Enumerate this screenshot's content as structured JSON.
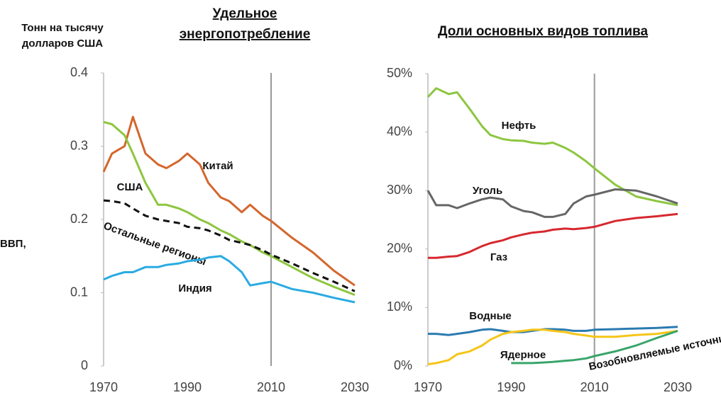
{
  "chart_data": [
    {
      "type": "line",
      "title": [
        "Удельное",
        "энергопотребление"
      ],
      "y_label": [
        "Тонн на тысячу",
        "долларов США"
      ],
      "x": [
        1970,
        1972,
        1975,
        1977,
        1980,
        1983,
        1985,
        1988,
        1990,
        1993,
        1995,
        1998,
        2000,
        2003,
        2005,
        2008,
        2010,
        2015,
        2020,
        2025,
        2030
      ],
      "xlim": [
        1970,
        2030
      ],
      "xticks": [
        1970,
        1990,
        2010,
        2030
      ],
      "ylim": [
        0,
        0.4
      ],
      "yticks": [
        0,
        0.1,
        0.2,
        0.3,
        0.4
      ],
      "vline": 2010,
      "series": [
        {
          "name": "Китай",
          "color": "#d4662c",
          "values": [
            0.265,
            0.29,
            0.3,
            0.34,
            0.29,
            0.275,
            0.27,
            0.28,
            0.29,
            0.275,
            0.25,
            0.23,
            0.225,
            0.21,
            0.22,
            0.205,
            0.198,
            0.175,
            0.155,
            0.13,
            0.11
          ]
        },
        {
          "name": "США",
          "color": "#8dc63f",
          "values": [
            0.333,
            0.33,
            0.315,
            0.29,
            0.25,
            0.22,
            0.22,
            0.215,
            0.21,
            0.2,
            0.195,
            0.185,
            0.18,
            0.17,
            0.165,
            0.155,
            0.15,
            0.135,
            0.12,
            0.108,
            0.097
          ]
        },
        {
          "name": "Остальные регионы",
          "color": "#111111",
          "dashed": true,
          "values": [
            0.226,
            0.225,
            0.222,
            0.215,
            0.205,
            0.2,
            0.198,
            0.195,
            0.19,
            0.188,
            0.185,
            0.178,
            0.172,
            0.168,
            0.165,
            0.158,
            0.152,
            0.14,
            0.127,
            0.115,
            0.102
          ]
        },
        {
          "name": "Индия",
          "color": "#29abe2",
          "values": [
            0.118,
            0.123,
            0.128,
            0.128,
            0.135,
            0.135,
            0.138,
            0.14,
            0.143,
            0.145,
            0.148,
            0.15,
            0.143,
            0.128,
            0.11,
            0.113,
            0.115,
            0.105,
            0.1,
            0.093,
            0.087
          ]
        }
      ]
    },
    {
      "type": "line",
      "title": [
        "Доли основных видов топлива"
      ],
      "x": [
        1970,
        1972,
        1975,
        1977,
        1980,
        1983,
        1985,
        1988,
        1990,
        1993,
        1995,
        1998,
        2000,
        2003,
        2005,
        2008,
        2010,
        2015,
        2020,
        2025,
        2030
      ],
      "xlim": [
        1970,
        2030
      ],
      "xticks": [
        1970,
        1990,
        2010,
        2030
      ],
      "ylim": [
        0,
        50
      ],
      "yticks": [
        {
          "value": 0,
          "label": "0%"
        },
        {
          "value": 10,
          "label": "10%"
        },
        {
          "value": 20,
          "label": "20%"
        },
        {
          "value": 30,
          "label": "30%"
        },
        {
          "value": 40,
          "label": "40%"
        },
        {
          "value": 50,
          "label": "50%"
        }
      ],
      "vline": 2010,
      "series": [
        {
          "name": "Нефть",
          "color": "#8dc63f",
          "values": [
            46,
            47.5,
            46.5,
            46.8,
            44,
            41,
            39.5,
            38.8,
            38.6,
            38.5,
            38.2,
            38,
            38.2,
            37.3,
            36.5,
            35,
            33.8,
            31,
            29,
            28.2,
            27.5
          ]
        },
        {
          "name": "Уголь",
          "color": "#666666",
          "values": [
            30,
            27.5,
            27.5,
            27,
            27.8,
            28.5,
            28.8,
            28.5,
            27.3,
            26.5,
            26.3,
            25.5,
            25.5,
            26,
            27.8,
            29,
            29.3,
            30.2,
            30,
            29,
            27.8
          ]
        },
        {
          "name": "Газ",
          "color": "#d7282f",
          "values": [
            18.5,
            18.5,
            18.7,
            18.8,
            19.5,
            20.5,
            21,
            21.5,
            22,
            22.5,
            22.8,
            23,
            23.3,
            23.5,
            23.4,
            23.6,
            23.8,
            24.8,
            25.3,
            25.6,
            26
          ]
        },
        {
          "name": "Водные",
          "color": "#2a7ab0",
          "values": [
            5.5,
            5.5,
            5.3,
            5.5,
            5.8,
            6.2,
            6.3,
            6.0,
            5.8,
            5.8,
            6.0,
            6.3,
            6.3,
            6.2,
            6.0,
            6.0,
            6.2,
            6.3,
            6.4,
            6.5,
            6.7
          ]
        },
        {
          "name": "Ядерное",
          "color": "#f5c518",
          "values": [
            0.3,
            0.5,
            1.0,
            2.0,
            2.5,
            3.5,
            4.5,
            5.5,
            5.8,
            6.0,
            6.2,
            6.2,
            6.0,
            5.8,
            5.5,
            5.2,
            5.0,
            5.0,
            5.3,
            5.5,
            6.0
          ]
        },
        {
          "name": "Возобновляемые источники",
          "color": "#3aa56a",
          "values": [
            null,
            null,
            null,
            null,
            null,
            null,
            null,
            null,
            0.5,
            0.5,
            0.5,
            0.6,
            0.7,
            0.9,
            1.0,
            1.3,
            1.7,
            2.5,
            3.5,
            4.8,
            6.0
          ]
        }
      ]
    }
  ],
  "cropped_text": "ВВП,"
}
